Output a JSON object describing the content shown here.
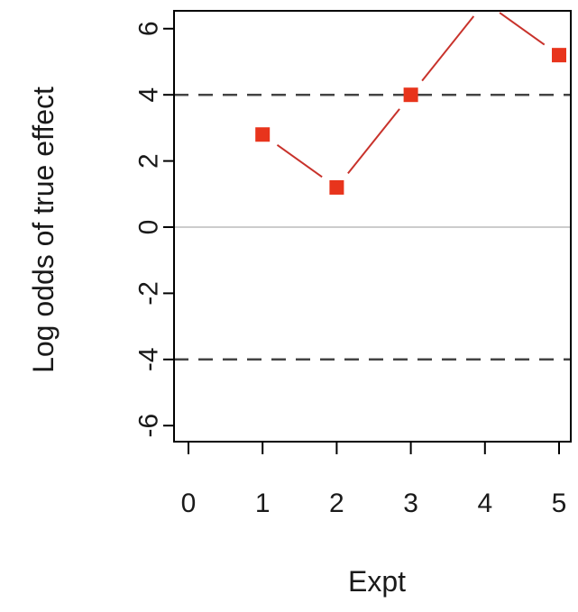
{
  "chart_data": {
    "type": "line",
    "title": "",
    "xlabel": "Expt",
    "ylabel": "Log odds of true effect",
    "xlim": [
      -0.25,
      5.25
    ],
    "ylim": [
      -6.5,
      6.5
    ],
    "x_ticks": [
      "0",
      "1",
      "2",
      "3",
      "4",
      "5"
    ],
    "y_ticks": [
      "-6",
      "-4",
      "-2",
      "0",
      "2",
      "4",
      "6"
    ],
    "series": [
      {
        "x": [
          1,
          2,
          3,
          4,
          5
        ],
        "y": [
          2.8,
          1.2,
          4.0,
          6.8,
          5.2
        ],
        "line_color": "#c8322b",
        "marker": "square",
        "marker_color": "#e8341c"
      }
    ],
    "reference_lines": [
      {
        "y": 4,
        "style": "dashed",
        "color": "#444444"
      },
      {
        "y": -4,
        "style": "dashed",
        "color": "#444444"
      },
      {
        "y": 0,
        "style": "solid",
        "color": "#bbbbbb"
      }
    ],
    "grid": false,
    "legend": "none"
  }
}
